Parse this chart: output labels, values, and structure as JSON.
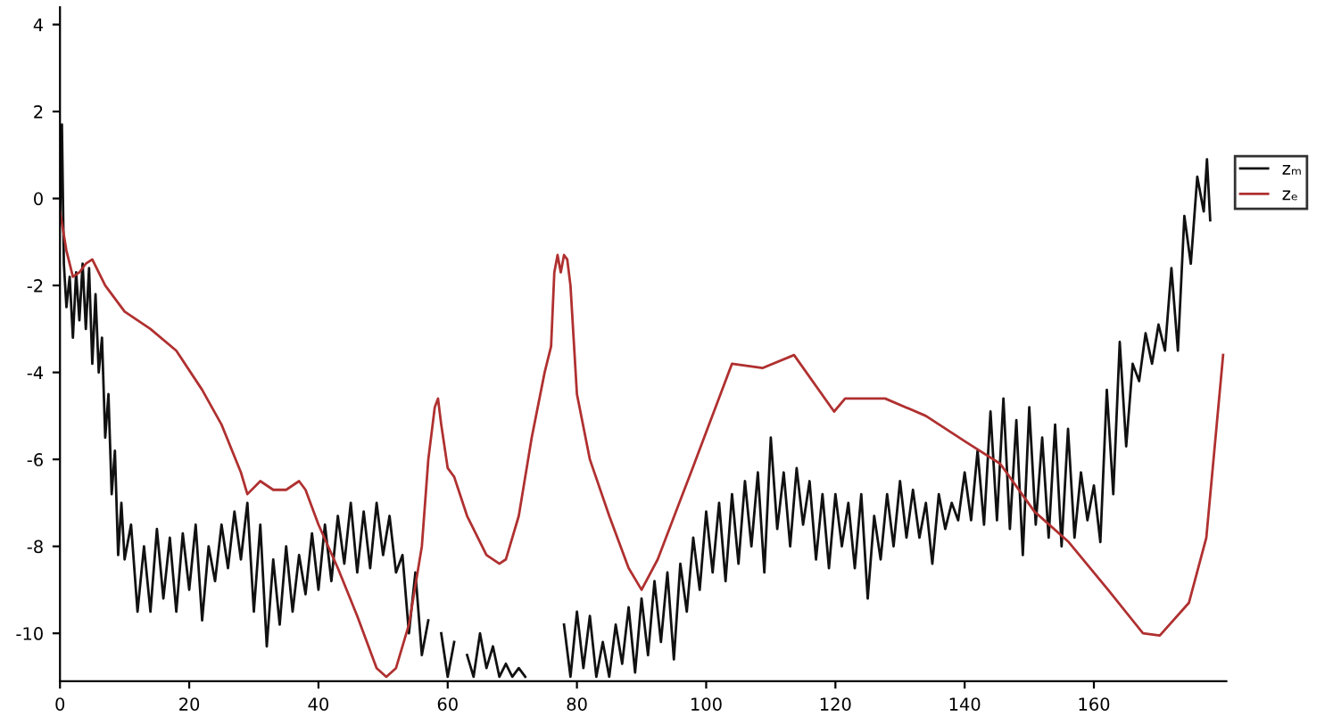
{
  "chart_data": {
    "type": "line",
    "xlim": [
      0,
      180.5
    ],
    "ylim": [
      -11.1,
      4.4
    ],
    "xticks": [
      0,
      20,
      40,
      60,
      80,
      100,
      120,
      140,
      160
    ],
    "yticks": [
      -10,
      -8,
      -6,
      -4,
      -2,
      0,
      2,
      4
    ],
    "grid": false,
    "legend": "right",
    "line_style": "solid",
    "marker": "none",
    "series": [
      {
        "name": "zₘ",
        "color": "#111111",
        "x": [
          0,
          0.3,
          0.6,
          1,
          1.5,
          2,
          2.5,
          3,
          3.5,
          4,
          4.5,
          5,
          5.5,
          6,
          6.5,
          7,
          7.5,
          8,
          8.5,
          9,
          9.5,
          10,
          11,
          12,
          13,
          14,
          15,
          16,
          17,
          18,
          19,
          20,
          21,
          22,
          23,
          24,
          25,
          26,
          27,
          28,
          29,
          30,
          31,
          32,
          33,
          34,
          35,
          36,
          37,
          38,
          39,
          40,
          41,
          42,
          43,
          44,
          45,
          46,
          47,
          48,
          49,
          50,
          51,
          52,
          53,
          54,
          55,
          56,
          57,
          58,
          59,
          60,
          61,
          62,
          63,
          64,
          65,
          66,
          67,
          68,
          69,
          70,
          71,
          72,
          73,
          76,
          77,
          78,
          79,
          80,
          81,
          82,
          83,
          84,
          85,
          86,
          87,
          88,
          89,
          90,
          91,
          92,
          93,
          94,
          95,
          96,
          97,
          98,
          99,
          100,
          101,
          102,
          103,
          104,
          105,
          106,
          107,
          108,
          109,
          110,
          111,
          112,
          113,
          114,
          115,
          116,
          117,
          118,
          119,
          120,
          121,
          122,
          123,
          124,
          125,
          126,
          127,
          128,
          129,
          130,
          131,
          132,
          133,
          134,
          135,
          136,
          137,
          138,
          139,
          140,
          141,
          142,
          143,
          144,
          145,
          146,
          147,
          148,
          149,
          150,
          151,
          152,
          153,
          154,
          155,
          156,
          157,
          158,
          159,
          160,
          161,
          162,
          163,
          164,
          165,
          166,
          167,
          168,
          169,
          170,
          171,
          172,
          173,
          174,
          175,
          176,
          177,
          177.5,
          178
        ],
        "values": [
          -0.5,
          1.7,
          -1.5,
          -2.5,
          -1.8,
          -3.2,
          -1.7,
          -2.8,
          -1.5,
          -3,
          -1.6,
          -3.8,
          -2.2,
          -4,
          -3.2,
          -5.5,
          -4.5,
          -6.8,
          -5.8,
          -8.2,
          -7,
          -8.3,
          -7.5,
          -9.5,
          -8,
          -9.5,
          -7.6,
          -9.2,
          -7.8,
          -9.5,
          -7.7,
          -9,
          -7.5,
          -9.7,
          -8,
          -8.8,
          -7.5,
          -8.5,
          -7.2,
          -8.3,
          -7,
          -9.5,
          -7.5,
          -10.3,
          -8.3,
          -9.8,
          -8,
          -9.5,
          -8.2,
          -9.1,
          -7.7,
          -9,
          -7.5,
          -8.8,
          -7.3,
          -8.4,
          -7,
          -8.6,
          -7.2,
          -8.5,
          -7,
          -8.2,
          -7.3,
          -8.6,
          -8.2,
          -10,
          -8.6,
          -10.5,
          -9.7,
          null,
          -10,
          -11,
          -10.2,
          null,
          -10.5,
          -11,
          -10,
          -10.8,
          -10.3,
          -11.0,
          -10.7,
          -11.0,
          -10.8,
          -11.0,
          null,
          null,
          null,
          -9.8,
          -11,
          -9.5,
          -10.8,
          -9.6,
          -11,
          -10.2,
          -11,
          -9.8,
          -10.7,
          -9.4,
          -10.9,
          -9.2,
          -10.5,
          -8.8,
          -10.2,
          -8.6,
          -10.6,
          -8.4,
          -9.5,
          -7.8,
          -9,
          -7.2,
          -8.6,
          -7,
          -8.8,
          -6.8,
          -8.4,
          -6.5,
          -8,
          -6.3,
          -8.6,
          -5.5,
          -7.6,
          -6.3,
          -8,
          -6.2,
          -7.5,
          -6.5,
          -8.3,
          -6.8,
          -8.5,
          -6.8,
          -8,
          -7,
          -8.5,
          -6.8,
          -9.2,
          -7.3,
          -8.3,
          -6.8,
          -8,
          -6.5,
          -7.8,
          -6.7,
          -7.8,
          -7,
          -8.4,
          -6.8,
          -7.6,
          -7,
          -7.4,
          -6.3,
          -7.4,
          -5.8,
          -7.5,
          -4.9,
          -7.4,
          -4.6,
          -7.6,
          -5.1,
          -8.2,
          -4.8,
          -7.5,
          -5.5,
          -7.8,
          -5.2,
          -8,
          -5.3,
          -7.8,
          -6.3,
          -7.4,
          -6.6,
          -7.9,
          -4.4,
          -6.8,
          -3.3,
          -5.7,
          -3.8,
          -4.2,
          -3.1,
          -3.8,
          -2.9,
          -3.5,
          -1.6,
          -3.5,
          -0.4,
          -1.5,
          0.5,
          -0.3,
          0.9,
          -0.5
        ]
      },
      {
        "name": "zₑ",
        "color": "#b03030",
        "x": [
          0,
          1,
          2,
          3,
          4,
          5,
          7,
          10,
          14,
          18,
          22,
          25,
          28,
          29,
          31,
          33,
          35,
          37,
          38,
          40,
          43,
          46,
          49,
          50.5,
          52,
          54,
          56,
          57,
          58,
          58.5,
          59,
          60,
          61,
          63,
          66,
          68,
          69,
          71,
          73,
          75,
          76,
          76.5,
          77,
          77.5,
          78,
          78.5,
          79,
          80,
          82,
          85,
          88,
          90,
          92.5,
          97.9,
          104,
          108.7,
          113.6,
          119.8,
          121.5,
          127.7,
          134,
          140.2,
          145.5,
          150.8,
          156.1,
          162.2,
          167.6,
          170.2,
          174.7,
          177.4,
          180
        ],
        "values": [
          -0.3,
          -1.2,
          -1.8,
          -1.7,
          -1.5,
          -1.4,
          -2,
          -2.6,
          -3,
          -3.5,
          -4.4,
          -5.2,
          -6.3,
          -6.8,
          -6.5,
          -6.7,
          -6.7,
          -6.5,
          -6.7,
          -7.5,
          -8.5,
          -9.6,
          -10.8,
          -11.0,
          -10.8,
          -9.8,
          -8,
          -6,
          -4.8,
          -4.6,
          -5.2,
          -6.2,
          -6.4,
          -7.3,
          -8.2,
          -8.4,
          -8.3,
          -7.3,
          -5.5,
          -4,
          -3.4,
          -1.7,
          -1.3,
          -1.7,
          -1.3,
          -1.4,
          -2,
          -4.5,
          -6,
          -7.3,
          -8.5,
          -9,
          -8.3,
          -6.2,
          -3.8,
          -3.9,
          -3.6,
          -4.9,
          -4.6,
          -4.6,
          -5,
          -5.6,
          -6.1,
          -7.2,
          -7.9,
          -9,
          -10,
          -10.05,
          -9.3,
          -7.8,
          -3.6
        ]
      }
    ]
  }
}
